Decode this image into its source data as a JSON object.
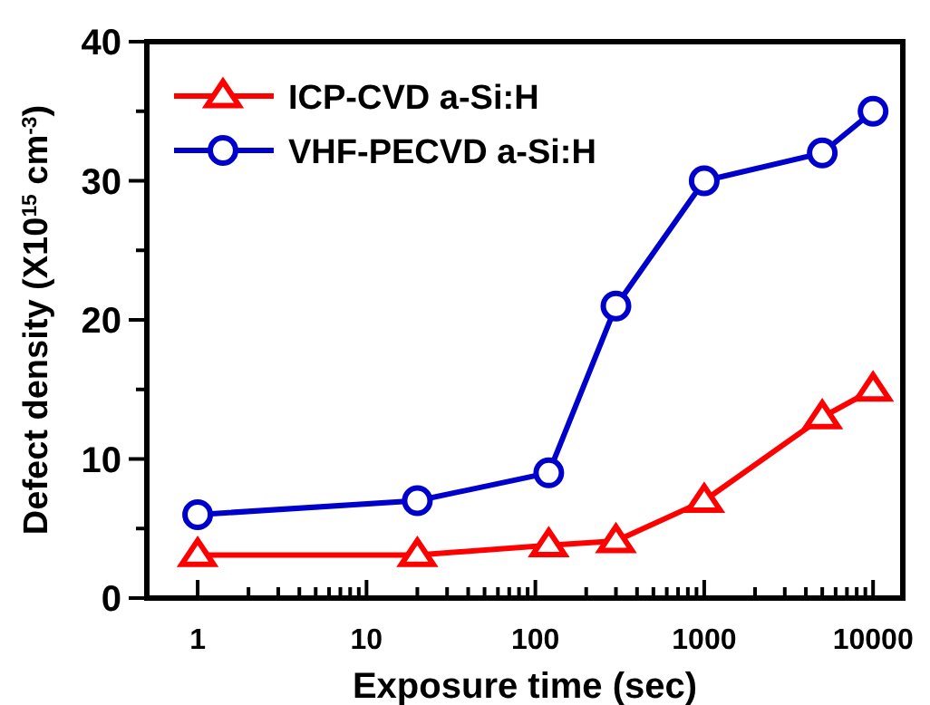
{
  "chart_data": {
    "type": "line",
    "xlabel": "Exposure time (sec)",
    "ylabel": "Defect density (X10$^{15}$ cm$^{-3}$)",
    "x": [
      1,
      20,
      120,
      300,
      1000,
      5000,
      10000
    ],
    "series": [
      {
        "name": "ICP-CVD a-Si:H",
        "color": "#ff0000",
        "marker": "triangle",
        "values": [
          3.1,
          3.1,
          3.8,
          4.1,
          7,
          13,
          15
        ]
      },
      {
        "name": "VHF-PECVD a-Si:H",
        "color": "#0000cc",
        "marker": "circle",
        "values": [
          6,
          7,
          9,
          21,
          30,
          32,
          35
        ]
      }
    ],
    "log": "x",
    "xlim": [
      0.5,
      15000
    ],
    "xticks": [
      1,
      {
        "value": 2,
        "label": null
      },
      {
        "value": 3,
        "label": null
      },
      {
        "value": 4,
        "label": null
      },
      {
        "value": 5,
        "label": null
      },
      {
        "value": 6,
        "label": null
      },
      {
        "value": 7,
        "label": null
      },
      {
        "value": 8,
        "label": null
      },
      {
        "value": 9,
        "label": null
      },
      10,
      {
        "value": 20,
        "label": null
      },
      {
        "value": 30,
        "label": null
      },
      {
        "value": 40,
        "label": null
      },
      {
        "value": 50,
        "label": null
      },
      {
        "value": 60,
        "label": null
      },
      {
        "value": 70,
        "label": null
      },
      {
        "value": 80,
        "label": null
      },
      {
        "value": 90,
        "label": null
      },
      100,
      {
        "value": 200,
        "label": null
      },
      {
        "value": 300,
        "label": null
      },
      {
        "value": 400,
        "label": null
      },
      {
        "value": 500,
        "label": null
      },
      {
        "value": 600,
        "label": null
      },
      {
        "value": 700,
        "label": null
      },
      {
        "value": 800,
        "label": null
      },
      {
        "value": 900,
        "label": null
      },
      1000,
      {
        "value": 2000,
        "label": null
      },
      {
        "value": 3000,
        "label": null
      },
      {
        "value": 4000,
        "label": null
      },
      {
        "value": 5000,
        "label": null
      },
      {
        "value": 6000,
        "label": null
      },
      {
        "value": 7000,
        "label": null
      },
      {
        "value": 8000,
        "label": null
      },
      {
        "value": 9000,
        "label": null
      },
      10000
    ],
    "ylim": [
      0,
      40
    ],
    "yticks": [
      0,
      {
        "value": 5,
        "label": null
      },
      10,
      {
        "value": 15,
        "label": null
      },
      20,
      {
        "value": 25,
        "label": null
      },
      30,
      {
        "value": 35,
        "label": null
      },
      40
    ],
    "grid": false,
    "legend": "top left",
    "line_style": "solid"
  }
}
